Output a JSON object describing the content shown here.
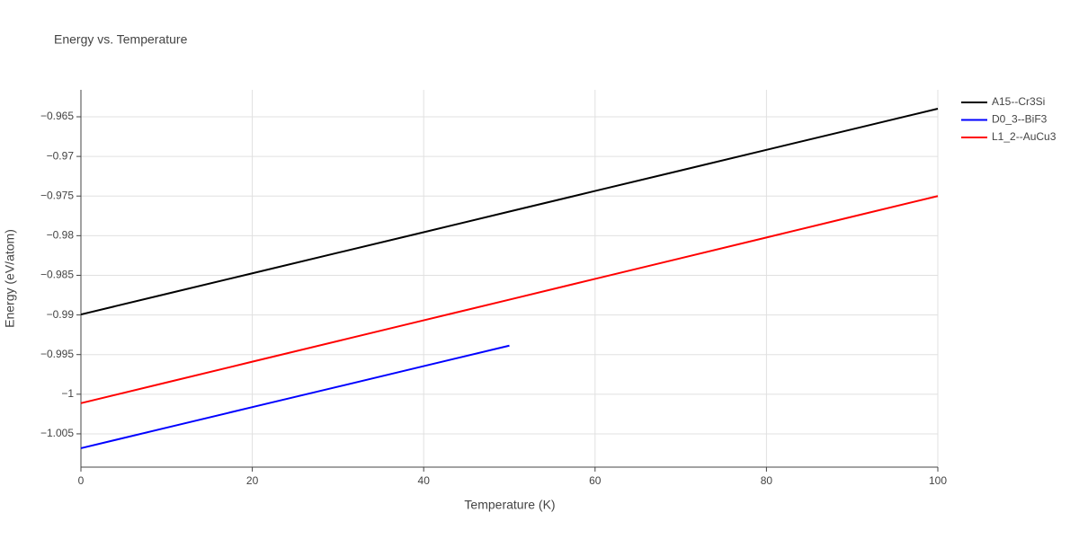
{
  "chart_data": {
    "type": "line",
    "title": "Energy vs. Temperature",
    "x_label": "Temperature (K)",
    "y_label": "Energy (eV/atom)",
    "xlim": [
      0,
      100
    ],
    "xticks": [
      0,
      20,
      40,
      60,
      80,
      100
    ],
    "ylim": [
      -1.0092,
      -0.9616
    ],
    "yticks": [
      {
        "value": -0.965,
        "label": "−0.965"
      },
      {
        "value": -0.97,
        "label": "−0.97"
      },
      {
        "value": -0.975,
        "label": "−0.975"
      },
      {
        "value": -0.98,
        "label": "−0.98"
      },
      {
        "value": -0.985,
        "label": "−0.985"
      },
      {
        "value": -0.99,
        "label": "−0.99"
      },
      {
        "value": -0.995,
        "label": "−0.995"
      },
      {
        "value": -1,
        "label": "−1"
      },
      {
        "value": -1.005,
        "label": "−1.005"
      }
    ],
    "grid": true,
    "legend": "right",
    "series": [
      {
        "name": "A15--Cr3Si",
        "color": "#000000",
        "x": [
          0,
          10,
          20,
          30,
          40,
          50,
          60,
          70,
          80,
          90,
          100
        ],
        "values": [
          -0.98994,
          -0.98734,
          -0.98475,
          -0.98215,
          -0.97956,
          -0.97696,
          -0.97436,
          -0.97177,
          -0.96917,
          -0.96658,
          -0.96398
        ]
      },
      {
        "name": "D0_3--BiF3",
        "color": "#0000ff",
        "x": [
          0,
          10,
          20,
          30,
          40,
          50
        ],
        "values": [
          -1.00681,
          -1.00422,
          -1.00163,
          -0.99905,
          -0.99646,
          -0.99387
        ]
      },
      {
        "name": "L1_2--AuCu3",
        "color": "#ff0000",
        "x": [
          0,
          10,
          20,
          30,
          40,
          50,
          60,
          70,
          80,
          90,
          100
        ],
        "values": [
          -1.00113,
          -0.99852,
          -0.9959,
          -0.99329,
          -0.99068,
          -0.98807,
          -0.98545,
          -0.98284,
          -0.98023,
          -0.97761,
          -0.975
        ]
      }
    ]
  }
}
